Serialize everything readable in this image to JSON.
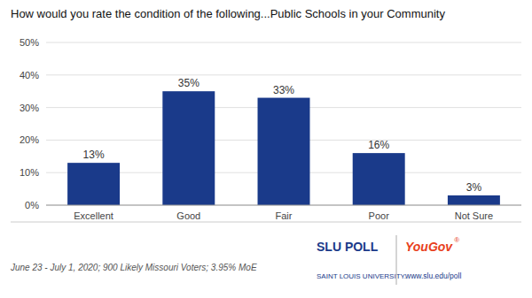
{
  "chart_data": {
    "type": "bar",
    "title": "How would you rate the condition of the following...Public Schools in your Community",
    "categories": [
      "Excellent",
      "Good",
      "Fair",
      "Poor",
      "Not Sure"
    ],
    "values": [
      13,
      35,
      33,
      16,
      3
    ],
    "value_labels": [
      "13%",
      "35%",
      "33%",
      "16%",
      "3%"
    ],
    "data_labels": true,
    "color": "#1a3a8a",
    "ylim": [
      0,
      50
    ],
    "yticks": [
      {
        "value": 0,
        "label": "0%"
      },
      {
        "value": 10,
        "label": "10%"
      },
      {
        "value": 20,
        "label": "20%"
      },
      {
        "value": 30,
        "label": "30%"
      },
      {
        "value": 40,
        "label": "40%"
      },
      {
        "value": 50,
        "label": "50%"
      }
    ],
    "grid": true,
    "annotations": [
      {
        "text": "June 23 - July 1, 2020; 900 Likely Missouri Voters; 3.95% MoE",
        "color": "#555555"
      },
      {
        "text": "SLU POLL",
        "color": "#1a3a8a"
      },
      {
        "text": "SAINT LOUIS UNIVERSITY.",
        "color": "#1a3a8a"
      },
      {
        "text": "YouGov",
        "color": "#e8401c"
      },
      {
        "text": "®",
        "color": "#e8401c"
      },
      {
        "text": "www.slu.edu/poll",
        "color": "#1a3a8a"
      }
    ]
  }
}
